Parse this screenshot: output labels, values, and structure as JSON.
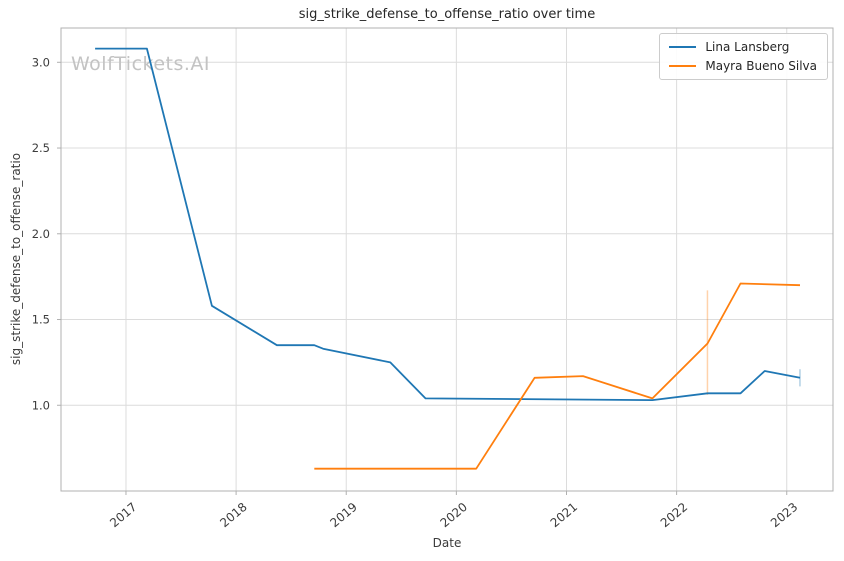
{
  "watermark": "WolfTickets.AI",
  "chart_data": {
    "type": "line",
    "title": "sig_strike_defense_to_offense_ratio over time",
    "xlabel": "Date",
    "ylabel": "sig_strike_defense_to_offense_ratio",
    "xlim": [
      2016.41,
      2023.42
    ],
    "ylim": [
      0.5,
      3.2
    ],
    "grid": true,
    "legend_position": "upper right",
    "x_ticks": [
      {
        "v": 2017,
        "label": "2017"
      },
      {
        "v": 2018,
        "label": "2018"
      },
      {
        "v": 2019,
        "label": "2019"
      },
      {
        "v": 2020,
        "label": "2020"
      },
      {
        "v": 2021,
        "label": "2021"
      },
      {
        "v": 2022,
        "label": "2022"
      },
      {
        "v": 2023,
        "label": "2023"
      }
    ],
    "y_ticks": [
      {
        "v": 1.0,
        "label": "1.0"
      },
      {
        "v": 1.5,
        "label": "1.5"
      },
      {
        "v": 2.0,
        "label": "2.0"
      },
      {
        "v": 2.5,
        "label": "2.5"
      },
      {
        "v": 3.0,
        "label": "3.0"
      }
    ],
    "series": [
      {
        "name": "Lina Lansberg",
        "color": "#1f77b4",
        "points": [
          [
            2016.72,
            3.08
          ],
          [
            2017.19,
            3.08
          ],
          [
            2017.78,
            1.58
          ],
          [
            2018.37,
            1.35
          ],
          [
            2018.71,
            1.35
          ],
          [
            2018.79,
            1.33
          ],
          [
            2019.4,
            1.25
          ],
          [
            2019.72,
            1.04
          ],
          [
            2021.78,
            1.03
          ],
          [
            2022.28,
            1.07
          ],
          [
            2022.58,
            1.07
          ],
          [
            2022.8,
            1.2
          ],
          [
            2023.12,
            1.16
          ]
        ],
        "error_bar": {
          "x": 2023.12,
          "low": 1.11,
          "high": 1.21
        }
      },
      {
        "name": "Mayra Bueno Silva",
        "color": "#ff7f0e",
        "points": [
          [
            2018.71,
            0.63
          ],
          [
            2020.18,
            0.63
          ],
          [
            2020.71,
            1.16
          ],
          [
            2021.15,
            1.17
          ],
          [
            2021.78,
            1.04
          ],
          [
            2022.28,
            1.36
          ],
          [
            2022.58,
            1.71
          ],
          [
            2023.12,
            1.7
          ]
        ],
        "error_bar": {
          "x": 2022.28,
          "low": 1.06,
          "high": 1.67
        }
      }
    ],
    "colors": {
      "grid": "#dcdcdc",
      "frame": "#b0b0b0",
      "tick_text": "#3c3c3c",
      "watermark": "#c3c3c3"
    }
  }
}
